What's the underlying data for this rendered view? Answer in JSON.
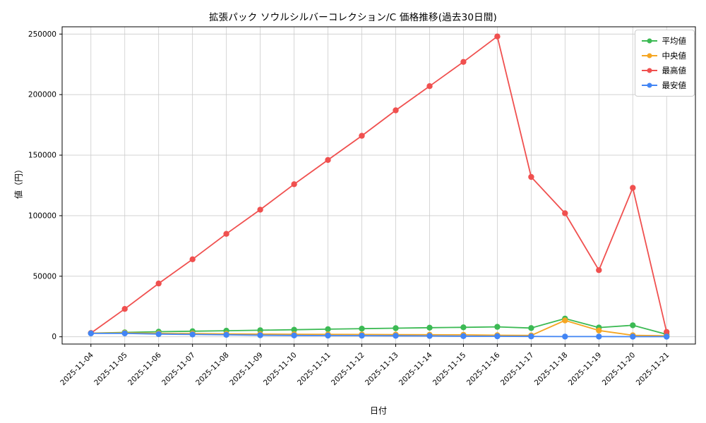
{
  "chart_data": {
    "type": "line",
    "title": "拡張パック ソウルシルバーコレクション/C 価格推移(過去30日間)",
    "xlabel": "日付",
    "ylabel": "値（円）",
    "grid": true,
    "legend_position": "top-right",
    "ylim": [
      -6000,
      256000
    ],
    "yticks": [
      0,
      50000,
      100000,
      150000,
      200000,
      250000
    ],
    "x": [
      "2025-11-04",
      "2025-11-05",
      "2025-11-06",
      "2025-11-07",
      "2025-11-08",
      "2025-11-09",
      "2025-11-10",
      "2025-11-11",
      "2025-11-12",
      "2025-11-13",
      "2025-11-14",
      "2025-11-15",
      "2025-11-16",
      "2025-11-17",
      "2025-11-18",
      "2025-11-19",
      "2025-11-20",
      "2025-11-21"
    ],
    "series": [
      {
        "key": "average",
        "name": "平均値",
        "color": "#3cba54",
        "values": [
          3000,
          3600,
          4200,
          4600,
          5000,
          5400,
          5800,
          6300,
          6700,
          7100,
          7500,
          7800,
          8200,
          7200,
          15000,
          7600,
          9500,
          2000
        ]
      },
      {
        "key": "median",
        "name": "中央値",
        "color": "#f5a623",
        "values": [
          3000,
          3200,
          2800,
          2600,
          2400,
          2200,
          2100,
          2000,
          1900,
          1800,
          1700,
          1600,
          1300,
          1100,
          13500,
          5200,
          1200,
          800
        ]
      },
      {
        "key": "highest",
        "name": "最高値",
        "color": "#f0504f",
        "values": [
          3000,
          23000,
          44000,
          64000,
          85000,
          105000,
          126000,
          146000,
          166000,
          187000,
          207000,
          227000,
          248000,
          132000,
          102000,
          55000,
          123000,
          4000
        ]
      },
      {
        "key": "lowest",
        "name": "最安値",
        "color": "#4285f4",
        "values": [
          2800,
          2800,
          2200,
          1900,
          1600,
          1300,
          1100,
          1000,
          900,
          800,
          700,
          500,
          400,
          300,
          200,
          150,
          100,
          100
        ]
      }
    ]
  }
}
